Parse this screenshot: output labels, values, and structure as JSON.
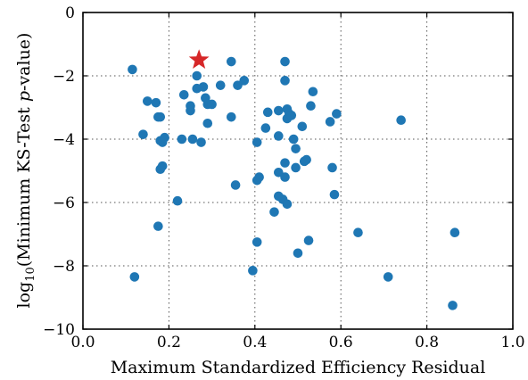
{
  "chart_data": {
    "type": "scatter",
    "xlabel": "Maximum Standardized Efficiency Residual",
    "ylabel_prefix": "log",
    "ylabel_subscript": "10",
    "ylabel_text": "(Minimum KS-Test ",
    "ylabel_italic": "p",
    "ylabel_suffix": "-value)",
    "xlim": [
      0.0,
      1.0
    ],
    "ylim": [
      -10,
      0
    ],
    "xticks": [
      0.0,
      0.2,
      0.4,
      0.6,
      0.8,
      1.0
    ],
    "xtick_labels": [
      "0.0",
      "0.2",
      "0.4",
      "0.6",
      "0.8",
      "1.0"
    ],
    "yticks": [
      0,
      -2,
      -4,
      -6,
      -8,
      -10
    ],
    "ytick_labels": [
      "0",
      "−2",
      "−4",
      "−6",
      "−8",
      "−10"
    ],
    "grid": true,
    "point_color": "#1f77b4",
    "highlight_color": "#d62728",
    "series": [
      {
        "marker": "circle",
        "points": [
          [
            0.115,
            -1.8
          ],
          [
            0.12,
            -8.35
          ],
          [
            0.14,
            -3.85
          ],
          [
            0.15,
            -2.8
          ],
          [
            0.17,
            -2.85
          ],
          [
            0.175,
            -3.3
          ],
          [
            0.18,
            -3.3
          ],
          [
            0.175,
            -6.75
          ],
          [
            0.18,
            -4.05
          ],
          [
            0.185,
            -4.1
          ],
          [
            0.19,
            -3.95
          ],
          [
            0.18,
            -4.95
          ],
          [
            0.185,
            -4.85
          ],
          [
            0.22,
            -5.95
          ],
          [
            0.23,
            -4.0
          ],
          [
            0.235,
            -2.6
          ],
          [
            0.25,
            -2.95
          ],
          [
            0.25,
            -3.1
          ],
          [
            0.255,
            -4.0
          ],
          [
            0.265,
            -2.0
          ],
          [
            0.265,
            -2.4
          ],
          [
            0.275,
            -4.1
          ],
          [
            0.28,
            -2.35
          ],
          [
            0.285,
            -2.7
          ],
          [
            0.29,
            -2.9
          ],
          [
            0.29,
            -3.5
          ],
          [
            0.3,
            -2.9
          ],
          [
            0.32,
            -2.3
          ],
          [
            0.345,
            -1.55
          ],
          [
            0.345,
            -3.3
          ],
          [
            0.355,
            -5.45
          ],
          [
            0.36,
            -2.3
          ],
          [
            0.375,
            -2.15
          ],
          [
            0.395,
            -8.15
          ],
          [
            0.405,
            -7.25
          ],
          [
            0.405,
            -4.1
          ],
          [
            0.405,
            -5.3
          ],
          [
            0.41,
            -5.2
          ],
          [
            0.425,
            -3.65
          ],
          [
            0.43,
            -3.15
          ],
          [
            0.445,
            -6.3
          ],
          [
            0.455,
            -3.1
          ],
          [
            0.455,
            -3.9
          ],
          [
            0.455,
            -5.05
          ],
          [
            0.455,
            -5.8
          ],
          [
            0.465,
            -5.9
          ],
          [
            0.47,
            -1.55
          ],
          [
            0.47,
            -2.15
          ],
          [
            0.47,
            -4.75
          ],
          [
            0.47,
            -5.2
          ],
          [
            0.475,
            -3.05
          ],
          [
            0.475,
            -3.35
          ],
          [
            0.475,
            -6.05
          ],
          [
            0.48,
            -3.2
          ],
          [
            0.485,
            -3.25
          ],
          [
            0.49,
            -4.0
          ],
          [
            0.495,
            -4.3
          ],
          [
            0.495,
            -4.9
          ],
          [
            0.5,
            -7.6
          ],
          [
            0.51,
            -3.6
          ],
          [
            0.515,
            -4.7
          ],
          [
            0.52,
            -4.65
          ],
          [
            0.525,
            -7.2
          ],
          [
            0.53,
            -2.95
          ],
          [
            0.535,
            -2.5
          ],
          [
            0.575,
            -3.45
          ],
          [
            0.58,
            -4.9
          ],
          [
            0.585,
            -5.75
          ],
          [
            0.59,
            -3.2
          ],
          [
            0.64,
            -6.95
          ],
          [
            0.71,
            -8.35
          ],
          [
            0.74,
            -3.4
          ],
          [
            0.86,
            -9.25
          ],
          [
            0.865,
            -6.95
          ]
        ]
      },
      {
        "marker": "star",
        "points": [
          [
            0.27,
            -1.5
          ]
        ]
      }
    ]
  }
}
